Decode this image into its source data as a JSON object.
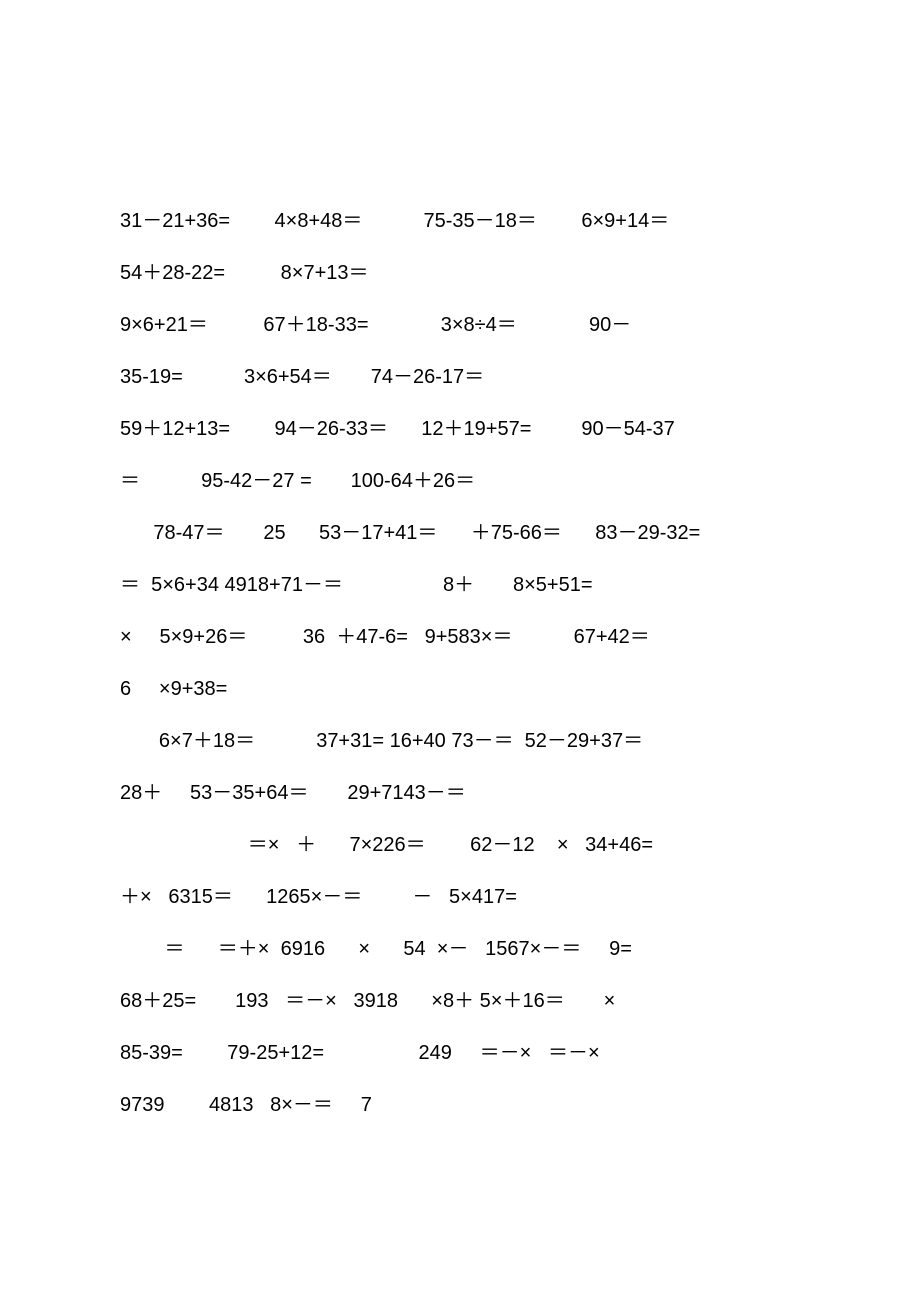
{
  "document": {
    "font_family": "Arial",
    "font_size": 20,
    "line_height": 2.6,
    "text_color": "#000000",
    "background_color": "#ffffff",
    "lines": [
      "31－21+36=        4×8+48＝           75-35－18＝        6×9+14＝",
      "54＋28-22=          8×7+13＝",
      "9×6+21＝          67＋18-33=             3×8÷4＝             90－",
      "35-19=           3×6+54＝       74－26-17＝",
      "59＋12+13=        94－26-33＝      12＋19+57=         90－54-37",
      "＝           95-42－27 =       100-64＋26＝",
      "      78-47＝       25      53－17+41＝      ＋75-66＝      83－29-32=",
      "＝  5×6+34 4918+71－＝                  8＋       8×5+51=",
      "×     5×9+26＝          36  ＋47-6=   9+583×＝           67+42＝",
      "6     ×9+38=",
      "       6×7＋18＝           37+31= 16+40 73－＝  52－29+37＝",
      "28＋     53－35+64＝       29+7143－＝",
      "                       ＝×   ＋      7×226＝        62－12    ×   34+46=",
      "＋×   6315＝      1265×－＝         －   5×417=",
      "        ＝      ＝＋×  6916      ×      54  ×－   1567×－＝     9=",
      "68＋25=       193   ＝－×   3918      ×8＋ 5×＋16＝       ×",
      "85-39=        79-25+12=                 249     ＝－×   ＝－×",
      "9739        4813   8×－＝     7"
    ]
  }
}
